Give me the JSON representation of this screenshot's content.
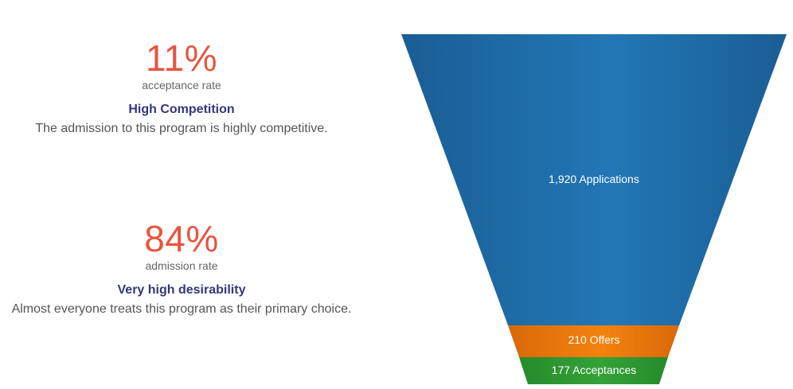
{
  "stats": [
    {
      "value": "11%",
      "caption": "acceptance rate",
      "heading": "High Competition",
      "description": "The admission to this program is highly competitive."
    },
    {
      "value": "84%",
      "caption": "admission rate",
      "heading": "Very high desirability",
      "description": "Almost everyone treats this program as their primary choice."
    }
  ],
  "colors": {
    "accent": "#e8553f",
    "heading": "#33377a",
    "applications": "#2171ad",
    "offers": "#ef7a11",
    "acceptances": "#2e9a32"
  },
  "chart_data": {
    "type": "funnel",
    "stages": [
      {
        "label": "1,920 Applications",
        "value": 1920,
        "color": "#2171ad"
      },
      {
        "label": "210 Offers",
        "value": 210,
        "color": "#ef7a11"
      },
      {
        "label": "177 Acceptances",
        "value": 177,
        "color": "#2e9a32"
      }
    ]
  }
}
